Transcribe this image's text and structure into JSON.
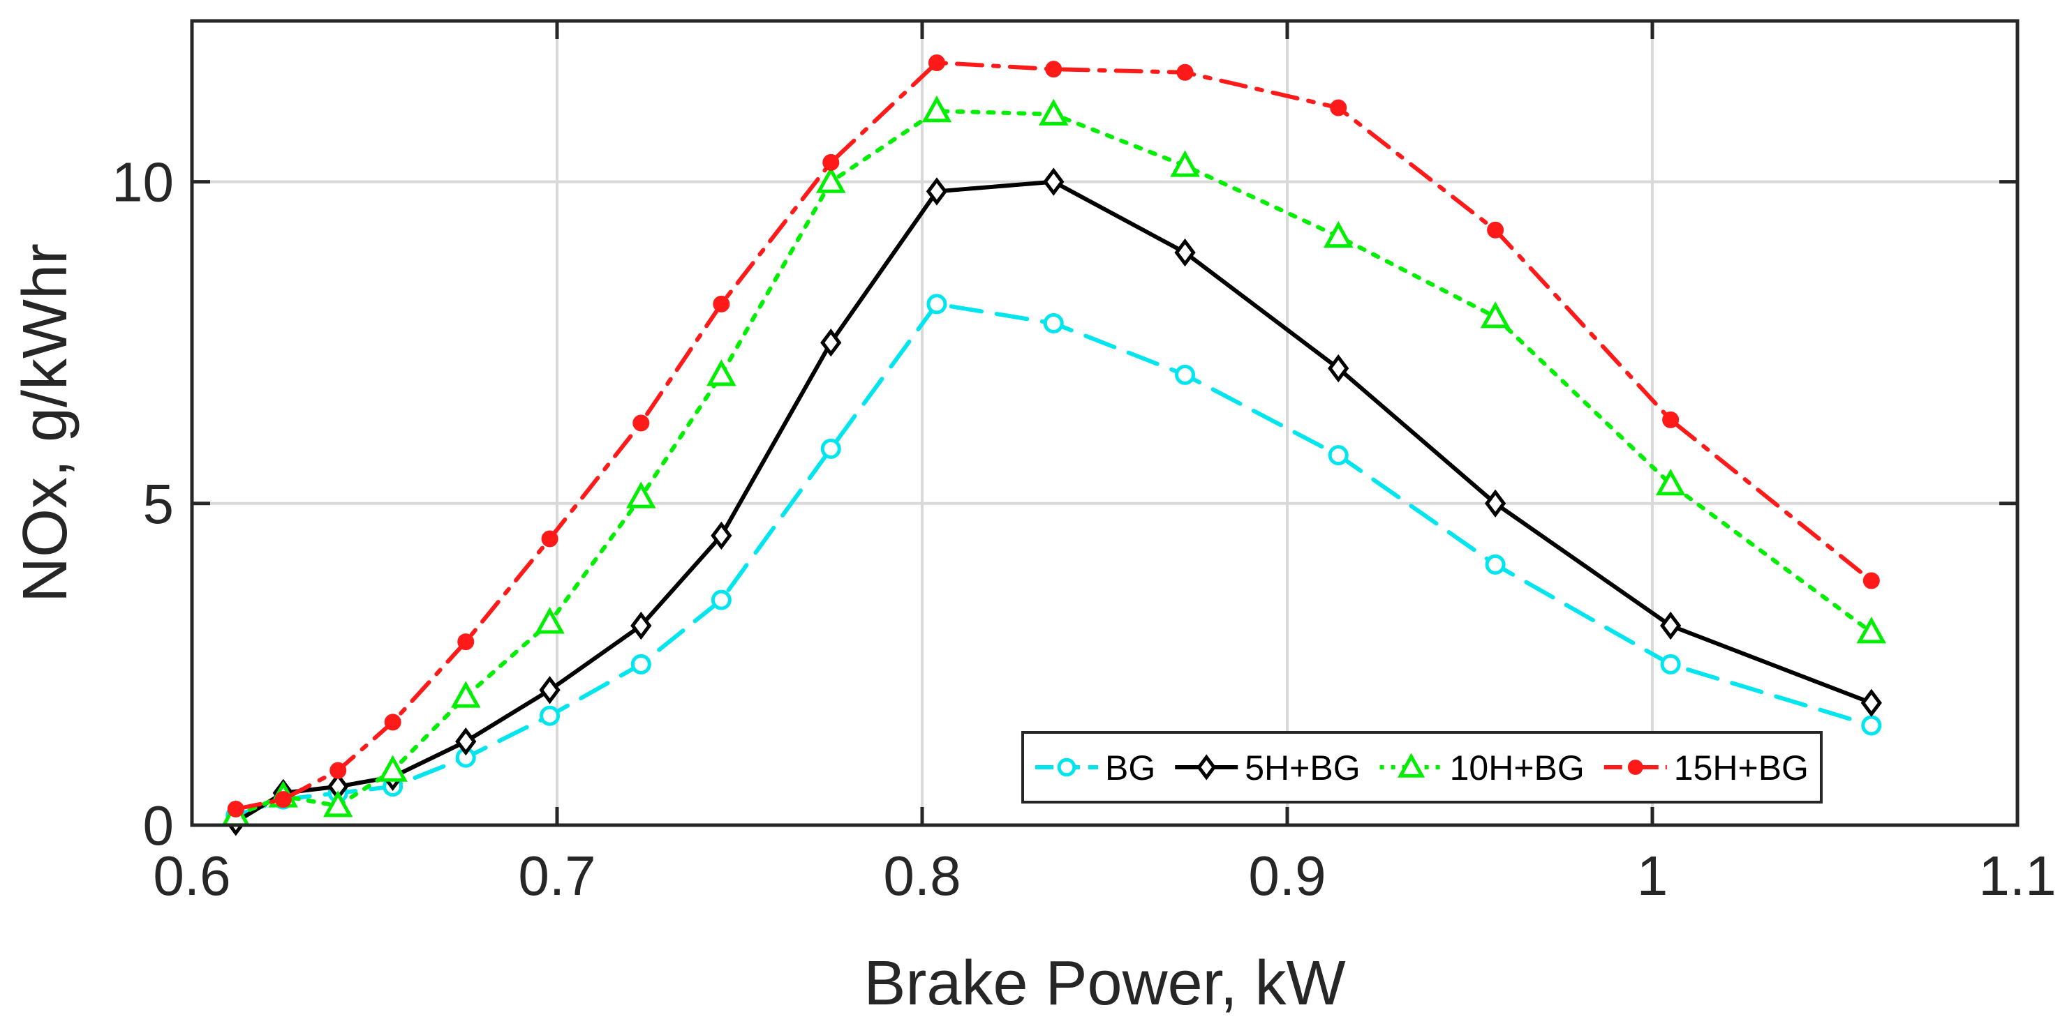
{
  "chart_data": {
    "type": "line",
    "title": "",
    "xlabel": "Brake Power, kW",
    "ylabel": "NOx, g/kWhr",
    "xlim": [
      0.6,
      1.1
    ],
    "ylim": [
      0,
      12.5
    ],
    "grid": true,
    "legend_position": "bottom-right",
    "x_ticks": [
      0.6,
      0.7,
      0.8,
      0.9,
      1.0,
      1.1
    ],
    "x_tick_labels": [
      "0.6",
      "0.7",
      "0.8",
      "0.9",
      "1",
      "1.1"
    ],
    "y_ticks": [
      0,
      5,
      10
    ],
    "y_tick_labels": [
      "0",
      "5",
      "10"
    ],
    "x": [
      0.612,
      0.625,
      0.64,
      0.655,
      0.675,
      0.698,
      0.723,
      0.745,
      0.775,
      0.804,
      0.836,
      0.872,
      0.914,
      0.957,
      1.005,
      1.06
    ],
    "series": [
      {
        "name": "BG",
        "color": "#00e5ee",
        "marker": "circle",
        "line": "dashed",
        "values": [
          0.15,
          0.4,
          0.5,
          0.6,
          1.05,
          1.7,
          2.5,
          3.5,
          5.85,
          8.1,
          7.8,
          7.0,
          5.75,
          4.05,
          2.5,
          1.55
        ]
      },
      {
        "name": "5H+BG",
        "color": "#000000",
        "marker": "diamond",
        "line": "solid",
        "values": [
          0.05,
          0.5,
          0.6,
          0.75,
          1.3,
          2.1,
          3.1,
          4.5,
          7.5,
          9.85,
          10.0,
          8.9,
          7.1,
          5.0,
          3.1,
          1.9
        ]
      },
      {
        "name": "10H+BG",
        "color": "#00ee00",
        "marker": "triangle",
        "line": "dotted",
        "values": [
          0.15,
          0.45,
          0.3,
          0.85,
          2.0,
          3.15,
          5.1,
          7.0,
          10.0,
          11.1,
          11.05,
          10.25,
          9.15,
          7.9,
          5.3,
          3.0
        ]
      },
      {
        "name": "15H+BG",
        "color": "#ff1a1a",
        "marker": "filled-circle",
        "line": "dashdot",
        "values": [
          0.25,
          0.4,
          0.85,
          1.6,
          2.85,
          4.45,
          6.25,
          8.1,
          10.3,
          11.85,
          11.75,
          11.7,
          11.15,
          9.25,
          6.3,
          3.8
        ]
      }
    ]
  }
}
